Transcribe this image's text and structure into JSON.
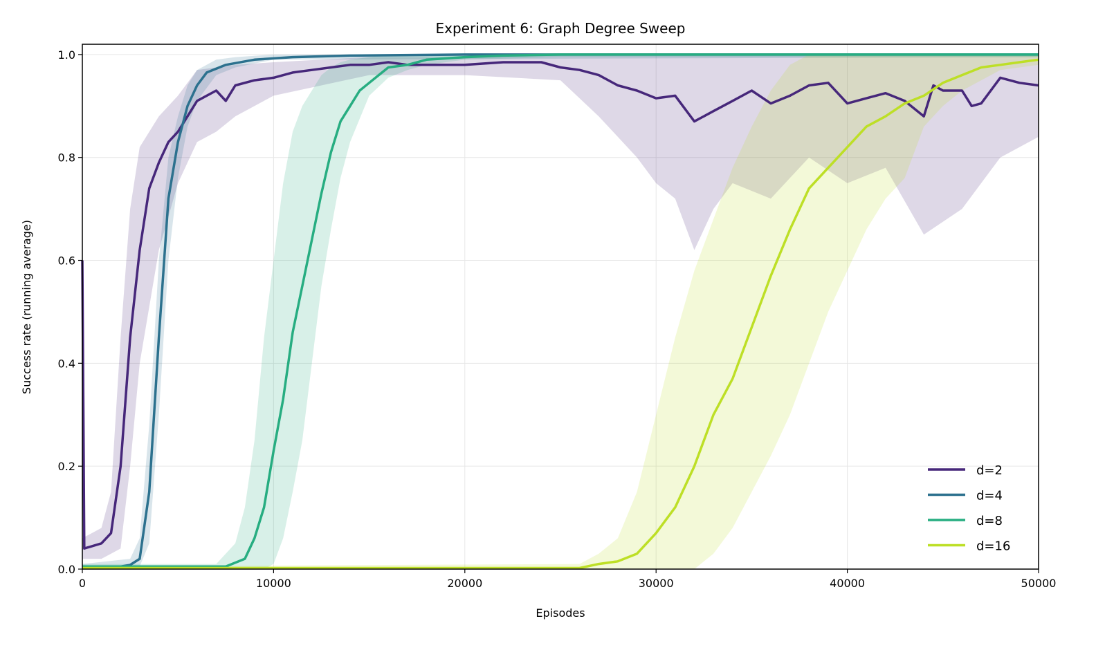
{
  "chart_data": {
    "type": "line",
    "title": "Experiment 6: Graph Degree Sweep",
    "xlabel": "Episodes",
    "ylabel": "Success rate (running average)",
    "xlim": [
      0,
      50000
    ],
    "ylim": [
      0,
      1.02
    ],
    "xticks": [
      0,
      10000,
      20000,
      30000,
      40000,
      50000
    ],
    "xtick_labels": [
      "0",
      "10000",
      "20000",
      "30000",
      "40000",
      "50000"
    ],
    "yticks": [
      0,
      0.2,
      0.4,
      0.6,
      0.8,
      1.0
    ],
    "ytick_labels": [
      "0.0",
      "0.2",
      "0.4",
      "0.6",
      "0.8",
      "1.0"
    ],
    "grid": true,
    "legend_placement": "lower-right",
    "series": [
      {
        "name": "d=2",
        "color": "#46277a",
        "x": [
          0,
          100,
          1000,
          1500,
          2000,
          2500,
          3000,
          3500,
          4000,
          4500,
          5000,
          5500,
          6000,
          7000,
          7500,
          8000,
          9000,
          10000,
          11000,
          12000,
          13000,
          14000,
          15000,
          16000,
          17000,
          18000,
          20000,
          22000,
          24000,
          25000,
          26000,
          27000,
          28000,
          29000,
          30000,
          31000,
          32000,
          33000,
          34000,
          35000,
          36000,
          37000,
          38000,
          39000,
          40000,
          41000,
          42000,
          43000,
          44000,
          44500,
          45000,
          46000,
          46500,
          47000,
          48000,
          49000,
          50000
        ],
        "y": [
          0.6,
          0.04,
          0.05,
          0.07,
          0.2,
          0.45,
          0.62,
          0.74,
          0.79,
          0.83,
          0.85,
          0.88,
          0.91,
          0.93,
          0.91,
          0.94,
          0.95,
          0.955,
          0.965,
          0.97,
          0.975,
          0.98,
          0.98,
          0.985,
          0.98,
          0.98,
          0.98,
          0.985,
          0.985,
          0.975,
          0.97,
          0.96,
          0.94,
          0.93,
          0.915,
          0.92,
          0.87,
          0.89,
          0.91,
          0.93,
          0.905,
          0.92,
          0.94,
          0.945,
          0.905,
          0.915,
          0.925,
          0.91,
          0.88,
          0.94,
          0.93,
          0.93,
          0.9,
          0.905,
          0.955,
          0.945,
          0.94
        ],
        "band_x": [
          0,
          1000,
          1500,
          2000,
          2500,
          3000,
          4000,
          5000,
          6000,
          7000,
          8000,
          10000,
          15000,
          20000,
          25000,
          27000,
          28000,
          29000,
          30000,
          31000,
          32000,
          33000,
          34000,
          36000,
          38000,
          40000,
          42000,
          44000,
          46000,
          48000,
          50000
        ],
        "band_lower": [
          0.02,
          0.02,
          0.03,
          0.04,
          0.2,
          0.4,
          0.62,
          0.75,
          0.83,
          0.85,
          0.88,
          0.92,
          0.96,
          0.96,
          0.95,
          0.88,
          0.84,
          0.8,
          0.75,
          0.72,
          0.62,
          0.7,
          0.75,
          0.72,
          0.8,
          0.75,
          0.78,
          0.65,
          0.7,
          0.8,
          0.84
        ],
        "band_upper": [
          0.06,
          0.08,
          0.15,
          0.45,
          0.7,
          0.82,
          0.88,
          0.92,
          0.97,
          0.975,
          0.98,
          0.985,
          0.995,
          0.995,
          1.0,
          1.0,
          1.0,
          1.0,
          1.0,
          1.0,
          1.0,
          1.0,
          1.0,
          1.0,
          1.0,
          1.0,
          1.0,
          1.0,
          1.0,
          1.0,
          1.0
        ]
      },
      {
        "name": "d=4",
        "color": "#2c718e",
        "x": [
          0,
          2000,
          2500,
          3000,
          3500,
          4000,
          4500,
          5000,
          5500,
          6000,
          6500,
          7500,
          9000,
          11000,
          14000,
          20000,
          50000
        ],
        "y": [
          0.005,
          0.005,
          0.008,
          0.02,
          0.15,
          0.45,
          0.72,
          0.83,
          0.9,
          0.94,
          0.965,
          0.98,
          0.99,
          0.995,
          0.998,
          1.0,
          1.0
        ],
        "band_x": [
          0,
          2500,
          3000,
          3500,
          4000,
          4500,
          5000,
          5500,
          6000,
          7000,
          8000,
          10000,
          50000
        ],
        "band_lower": [
          0.0,
          0.0,
          0.005,
          0.05,
          0.3,
          0.6,
          0.76,
          0.86,
          0.91,
          0.96,
          0.975,
          0.99,
          0.995
        ],
        "band_upper": [
          0.01,
          0.02,
          0.06,
          0.28,
          0.6,
          0.8,
          0.88,
          0.94,
          0.97,
          0.99,
          0.995,
          1.0,
          1.0
        ]
      },
      {
        "name": "d=8",
        "color": "#27ad81",
        "x": [
          0,
          7500,
          8500,
          9000,
          9500,
          10000,
          10500,
          11000,
          11500,
          12000,
          12500,
          13000,
          13500,
          14000,
          14500,
          15000,
          15500,
          16000,
          17000,
          18000,
          20000,
          22000,
          25000,
          50000
        ],
        "y": [
          0.005,
          0.005,
          0.02,
          0.06,
          0.12,
          0.23,
          0.33,
          0.46,
          0.55,
          0.64,
          0.73,
          0.81,
          0.87,
          0.9,
          0.93,
          0.945,
          0.96,
          0.975,
          0.98,
          0.99,
          0.995,
          0.998,
          1.0,
          1.0
        ],
        "band_x": [
          0,
          7000,
          8000,
          8500,
          9000,
          9500,
          10000,
          10500,
          11000,
          11500,
          12000,
          12500,
          13000,
          13500,
          14000,
          15000,
          16000,
          17000,
          18000,
          20000,
          25000,
          50000
        ],
        "band_lower": [
          0.0,
          0.0,
          0.0,
          0.0,
          0.0,
          0.0,
          0.01,
          0.06,
          0.15,
          0.25,
          0.4,
          0.55,
          0.66,
          0.76,
          0.83,
          0.92,
          0.955,
          0.97,
          0.98,
          0.99,
          0.995,
          0.995
        ],
        "band_upper": [
          0.01,
          0.01,
          0.05,
          0.12,
          0.25,
          0.45,
          0.6,
          0.75,
          0.85,
          0.9,
          0.93,
          0.96,
          0.975,
          0.985,
          0.99,
          0.995,
          1.0,
          1.0,
          1.0,
          1.0,
          1.0,
          1.0
        ]
      },
      {
        "name": "d=16",
        "color": "#bddf26",
        "x": [
          0,
          26000,
          27000,
          28000,
          29000,
          30000,
          31000,
          32000,
          33000,
          34000,
          35000,
          36000,
          37000,
          38000,
          39000,
          40000,
          41000,
          42000,
          43000,
          44000,
          45000,
          46000,
          47000,
          48000,
          49000,
          50000
        ],
        "y": [
          0.002,
          0.002,
          0.01,
          0.015,
          0.03,
          0.07,
          0.12,
          0.2,
          0.3,
          0.37,
          0.47,
          0.57,
          0.66,
          0.74,
          0.78,
          0.82,
          0.86,
          0.88,
          0.905,
          0.92,
          0.945,
          0.96,
          0.975,
          0.98,
          0.985,
          0.99
        ],
        "band_x": [
          0,
          26000,
          27000,
          28000,
          29000,
          30000,
          31000,
          32000,
          33000,
          34000,
          35000,
          36000,
          37000,
          38000,
          39000,
          40000,
          41000,
          42000,
          43000,
          44000,
          45000,
          46000,
          47000,
          48000,
          50000
        ],
        "band_lower": [
          0.0,
          0.0,
          0.0,
          0.0,
          0.0,
          0.0,
          0.0,
          0.0,
          0.03,
          0.08,
          0.15,
          0.22,
          0.3,
          0.4,
          0.5,
          0.58,
          0.66,
          0.72,
          0.76,
          0.86,
          0.9,
          0.93,
          0.95,
          0.97,
          0.98
        ],
        "band_upper": [
          0.005,
          0.01,
          0.03,
          0.06,
          0.15,
          0.3,
          0.45,
          0.58,
          0.68,
          0.78,
          0.86,
          0.93,
          0.98,
          1.0,
          1.0,
          1.0,
          1.0,
          1.0,
          1.0,
          1.0,
          1.0,
          1.0,
          1.0,
          1.0,
          1.0
        ]
      }
    ]
  }
}
